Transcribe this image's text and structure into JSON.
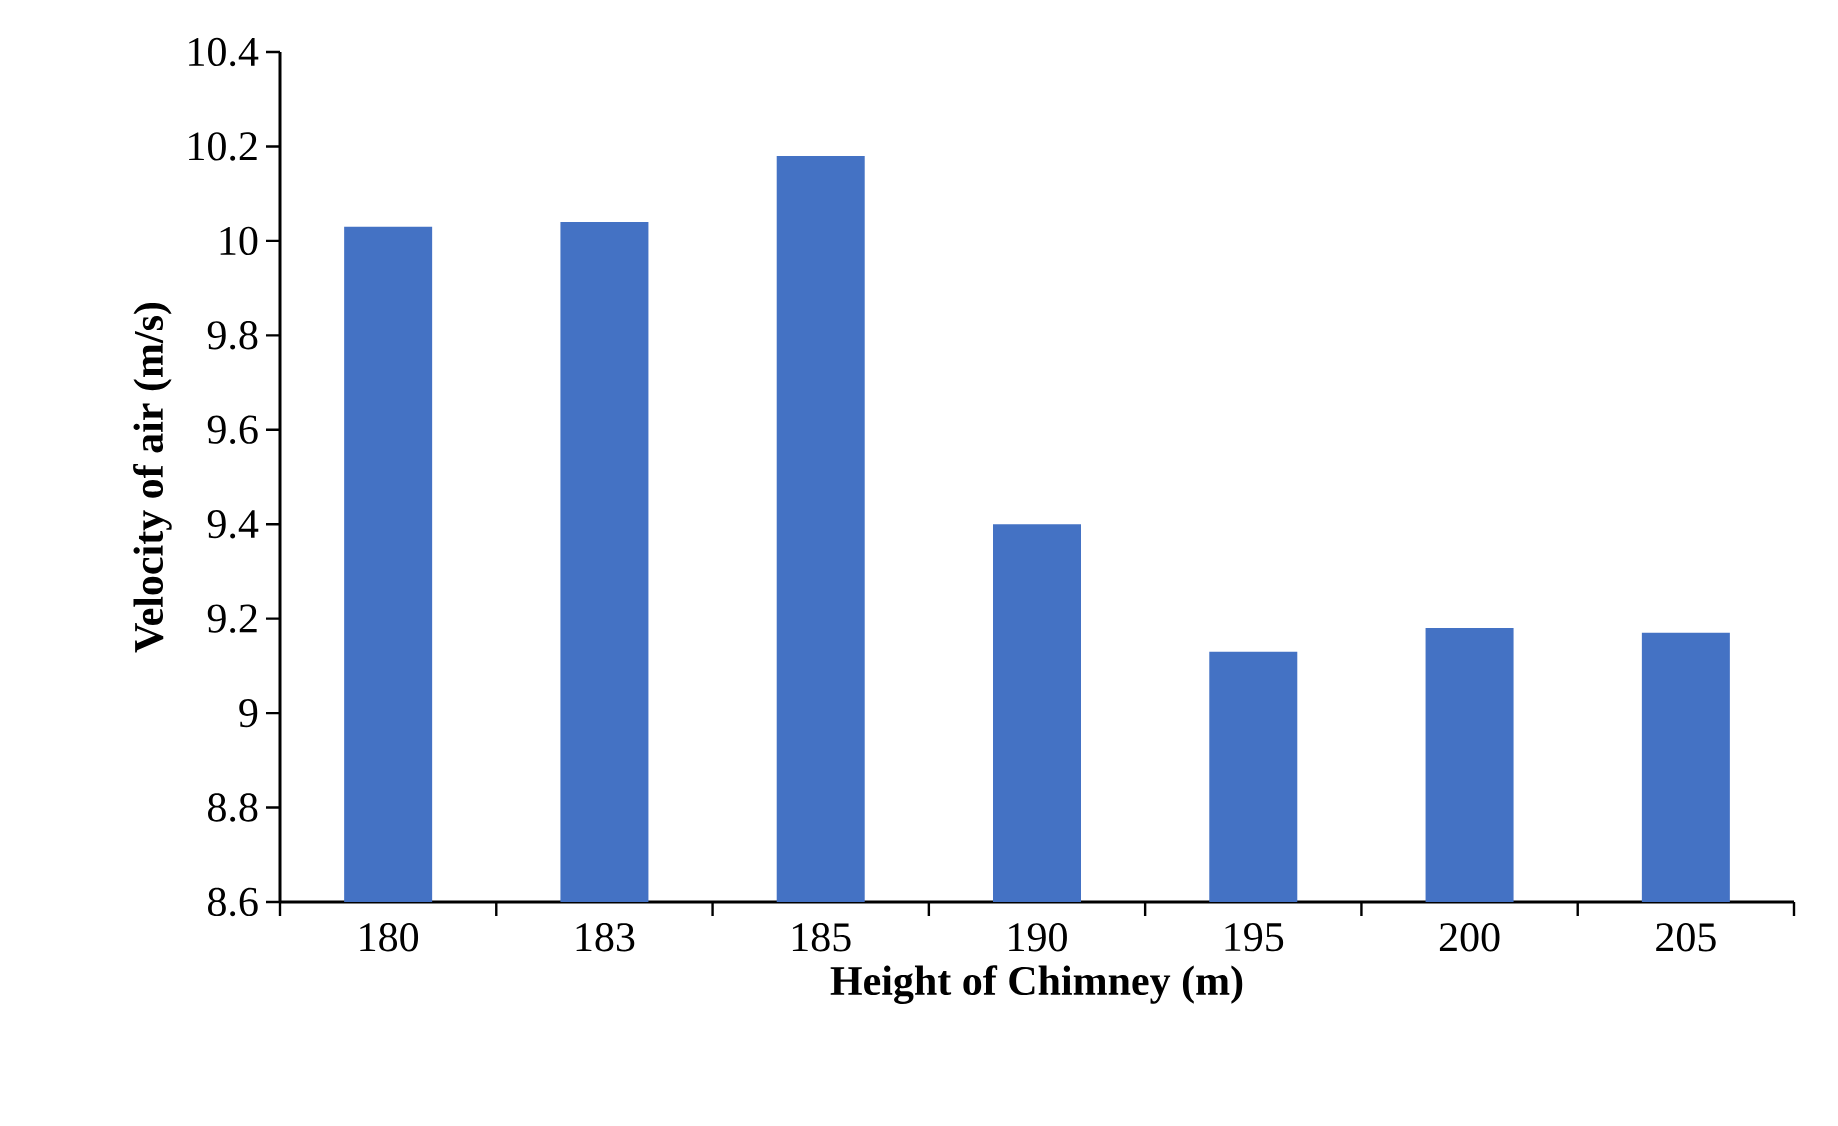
{
  "chart_data": {
    "type": "bar",
    "xlabel": "Height of Chimney (m)",
    "ylabel": "Velocity of air (m/s)",
    "categories": [
      "180",
      "183",
      "185",
      "190",
      "195",
      "200",
      "205"
    ],
    "values": [
      10.03,
      10.04,
      10.18,
      9.4,
      9.13,
      9.18,
      9.17
    ],
    "color": "#4472c4",
    "ylim": [
      8.6,
      10.4
    ],
    "yticks": [
      8.6,
      8.8,
      9,
      9.2,
      9.4,
      9.6,
      9.8,
      10,
      10.2,
      10.4
    ]
  }
}
